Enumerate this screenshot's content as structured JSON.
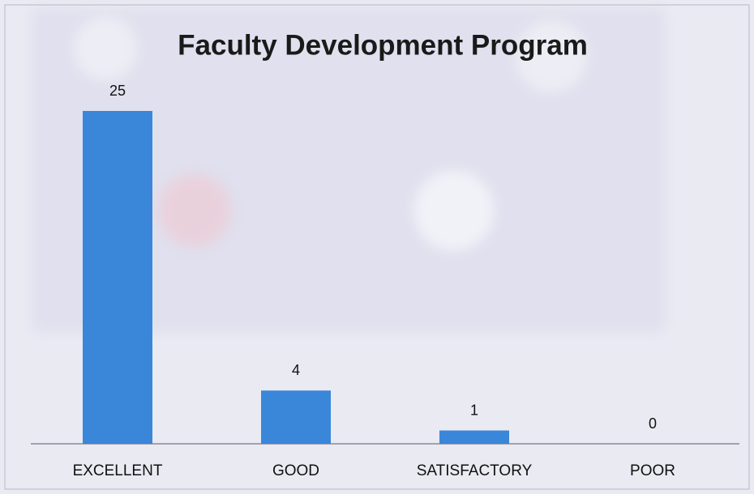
{
  "chart_data": {
    "type": "bar",
    "title": "Faculty Development Program",
    "categories": [
      "EXCELLENT",
      "GOOD",
      "SATISFACTORY",
      "POOR"
    ],
    "values": [
      25,
      4,
      1,
      0
    ],
    "color": "#3a86d9"
  }
}
